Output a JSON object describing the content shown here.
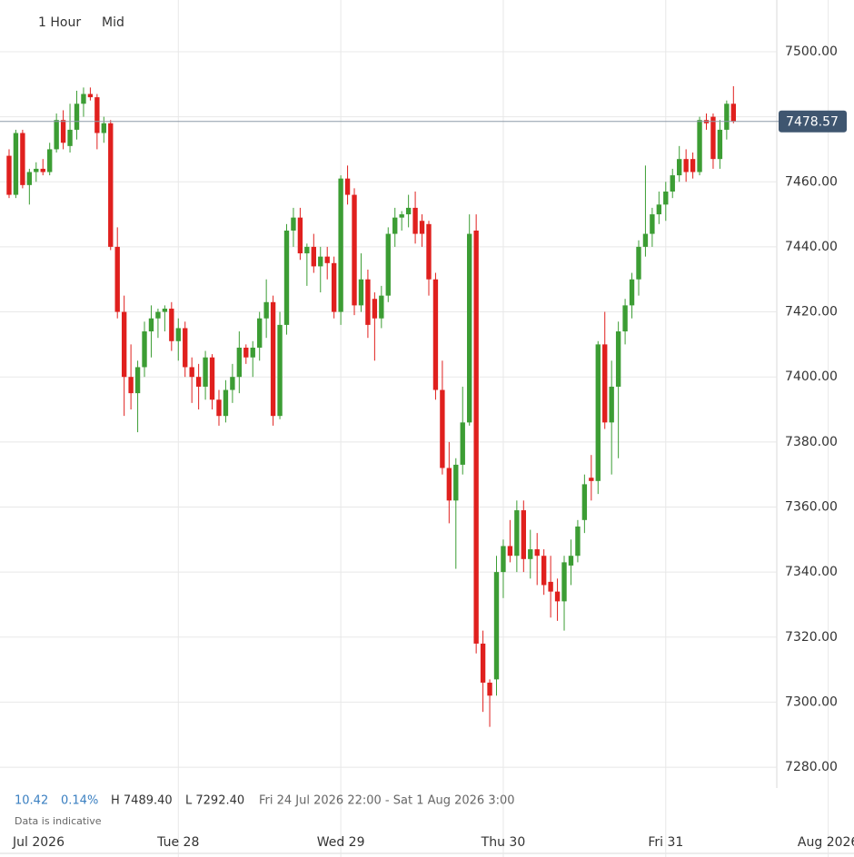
{
  "chart_data": {
    "type": "candlestick",
    "toolbar": {
      "interval": "1 Hour",
      "price_type": "Mid"
    },
    "open": [
      7468,
      7456,
      7475,
      7459,
      7463,
      7464,
      7463,
      7470,
      7479,
      7471,
      7476,
      7484,
      7487,
      7486,
      7475,
      7478,
      7440,
      7420,
      7400,
      7395,
      7403,
      7414,
      7418,
      7420,
      7421,
      7411,
      7415,
      7403,
      7400,
      7397,
      7406,
      7393,
      7388,
      7396,
      7400,
      7409,
      7406,
      7409,
      7418,
      7423,
      7388,
      7416,
      7445,
      7449,
      7438,
      7440,
      7434,
      7437,
      7435,
      7420,
      7461,
      7456,
      7422,
      7430,
      7424,
      7418,
      7425,
      7444,
      7449,
      7450,
      7452,
      7448,
      7447,
      7430,
      7396,
      7372,
      7362,
      7373,
      7386,
      7445,
      7318,
      7306,
      7307,
      7340,
      7348,
      7345,
      7359,
      7344,
      7347,
      7345,
      7337,
      7334,
      7331,
      7342,
      7345,
      7356,
      7369,
      7368,
      7410,
      7386,
      7397,
      7414,
      7422,
      7430,
      7440,
      7444,
      7450,
      7453,
      7457,
      7462,
      7467,
      7467,
      7463,
      7479,
      7480,
      7467,
      7476,
      7484
    ],
    "high": [
      7470,
      7476,
      7476,
      7464,
      7466,
      7467,
      7472,
      7481,
      7482,
      7484,
      7488,
      7489,
      7489,
      7487,
      7480,
      7479,
      7446,
      7425,
      7410,
      7405,
      7417,
      7422,
      7421,
      7422,
      7423,
      7418,
      7417,
      7406,
      7404,
      7408,
      7407,
      7396,
      7399,
      7404,
      7414,
      7410,
      7411,
      7420,
      7430,
      7425,
      7420,
      7447,
      7452,
      7452,
      7441,
      7444,
      7440,
      7440,
      7437,
      7462,
      7465,
      7458,
      7438,
      7433,
      7426,
      7428,
      7446,
      7452,
      7451,
      7456,
      7457,
      7450,
      7448,
      7432,
      7405,
      7380,
      7375,
      7397,
      7450,
      7450,
      7322,
      7307,
      7345,
      7350,
      7356,
      7362,
      7362,
      7353,
      7352,
      7347,
      7345,
      7338,
      7345,
      7350,
      7356,
      7370,
      7376,
      7411,
      7420,
      7405,
      7417,
      7424,
      7432,
      7442,
      7465,
      7452,
      7457,
      7460,
      7464,
      7471,
      7470,
      7469,
      7480,
      7481,
      7481,
      7479,
      7485,
      7489.4
    ],
    "low": [
      7455,
      7455,
      7458,
      7453,
      7460,
      7462,
      7462,
      7469,
      7470,
      7469,
      7473,
      7480,
      7485,
      7470,
      7472,
      7439,
      7418,
      7388,
      7390,
      7383,
      7400,
      7406,
      7412,
      7414,
      7408,
      7405,
      7400,
      7392,
      7390,
      7393,
      7390,
      7385,
      7386,
      7392,
      7395,
      7404,
      7400,
      7405,
      7412,
      7385,
      7387,
      7413,
      7440,
      7436,
      7428,
      7432,
      7426,
      7430,
      7418,
      7416,
      7453,
      7419,
      7420,
      7412,
      7405,
      7415,
      7423,
      7440,
      7445,
      7446,
      7441,
      7440,
      7425,
      7393,
      7370,
      7355,
      7341,
      7370,
      7385,
      7315,
      7297,
      7292.4,
      7302,
      7332,
      7343,
      7340,
      7340,
      7338,
      7336,
      7333,
      7326,
      7325,
      7322,
      7336,
      7343,
      7352,
      7362,
      7364,
      7384,
      7370,
      7375,
      7410,
      7418,
      7425,
      7437,
      7440,
      7447,
      7448,
      7455,
      7460,
      7460,
      7461,
      7462,
      7476,
      7464,
      7464,
      7473,
      7478
    ],
    "close": [
      7456,
      7475,
      7459,
      7463,
      7464,
      7463,
      7470,
      7479,
      7472,
      7476,
      7484,
      7487,
      7486,
      7475,
      7478,
      7440,
      7420,
      7400,
      7395,
      7403,
      7414,
      7418,
      7420,
      7421,
      7411,
      7415,
      7403,
      7400,
      7397,
      7406,
      7393,
      7388,
      7396,
      7400,
      7409,
      7406,
      7409,
      7418,
      7423,
      7388,
      7416,
      7445,
      7449,
      7438,
      7440,
      7434,
      7437,
      7435,
      7420,
      7461,
      7456,
      7422,
      7430,
      7416,
      7418,
      7425,
      7444,
      7449,
      7450,
      7452,
      7444,
      7444,
      7430,
      7396,
      7372,
      7362,
      7373,
      7386,
      7444,
      7318,
      7306,
      7302,
      7340,
      7348,
      7345,
      7359,
      7344,
      7347,
      7345,
      7336,
      7334,
      7331,
      7343,
      7345,
      7354,
      7367,
      7368,
      7410,
      7386,
      7397,
      7414,
      7422,
      7430,
      7440,
      7444,
      7450,
      7453,
      7457,
      7462,
      7467,
      7463,
      7463,
      7479,
      7478,
      7467,
      7476,
      7484,
      7478.57
    ],
    "up_color": "#3c9d34",
    "down_color": "#e0201e",
    "last_price": 7478.57,
    "xlim": [
      -1.34,
      113.4
    ],
    "xticks": [
      {
        "value": 1,
        "label": "Jul 2026"
      },
      {
        "value": 25,
        "label": "Tue 28"
      },
      {
        "value": 49,
        "label": "Wed 29"
      },
      {
        "value": 73,
        "label": "Thu 30"
      },
      {
        "value": 97,
        "label": "Fri 31"
      },
      {
        "value": 121,
        "label": "Aug 2026"
      }
    ],
    "ylim": [
      7273.6,
      7515.9
    ],
    "yticks": [
      {
        "value": 7280,
        "label": "7280.00"
      },
      {
        "value": 7300,
        "label": "7300.00"
      },
      {
        "value": 7320,
        "label": "7320.00"
      },
      {
        "value": 7340,
        "label": "7340.00"
      },
      {
        "value": 7360,
        "label": "7360.00"
      },
      {
        "value": 7380,
        "label": "7380.00"
      },
      {
        "value": 7400,
        "label": "7400.00"
      },
      {
        "value": 7420,
        "label": "7420.00"
      },
      {
        "value": 7440,
        "label": "7440.00"
      },
      {
        "value": 7460,
        "label": "7460.00"
      },
      {
        "value": 7480,
        "label": "7480.00"
      },
      {
        "value": 7500,
        "label": "7500.00"
      }
    ],
    "grid": true,
    "summary": {
      "change": "10.42",
      "change_pct": "0.14%",
      "high": "H 7489.40",
      "low": "L 7292.40",
      "range": "Fri 24 Jul 2026 22:00 - Sat 1 Aug 2026 3:00",
      "note": "Data is indicative"
    }
  }
}
